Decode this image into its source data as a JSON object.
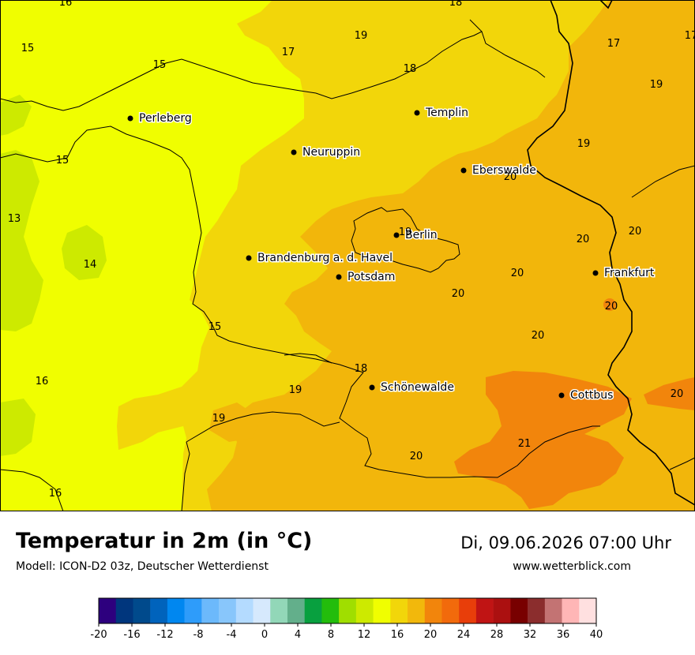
{
  "map": {
    "colors": {
      "c14": "#cdea00",
      "c16": "#f0fe00",
      "c18": "#f2d60a",
      "c19": "#f2b80c",
      "c20": "#f2b60b",
      "c21": "#f2850c",
      "border": "#000000"
    },
    "cities": [
      {
        "name": "Perleberg"
      },
      {
        "name": "Neuruppin"
      },
      {
        "name": "Templin"
      },
      {
        "name": "Eberswalde"
      },
      {
        "name": "Berlin"
      },
      {
        "name": "Brandenburg a. d. Havel"
      },
      {
        "name": "Potsdam"
      },
      {
        "name": "Frankfurt"
      },
      {
        "name": "Schönewalde"
      },
      {
        "name": "Cottbus"
      }
    ],
    "values": [
      "16",
      "18",
      "15",
      "17",
      "19",
      "17",
      "18",
      "15",
      "17",
      "19",
      "19",
      "15",
      "13",
      "14",
      "15",
      "19",
      "20",
      "20",
      "20",
      "20",
      "20",
      "20",
      "20",
      "15",
      "18",
      "19",
      "16",
      "19",
      "20",
      "21",
      "20",
      "16"
    ]
  },
  "footer": {
    "title": "Temperatur in 2m (in °C)",
    "subtitle": "Modell: ICON-D2 03z, Deutscher Wetterdienst",
    "datetime": "Di, 09.06.2026 07:00 Uhr",
    "website": "www.wetterblick.com"
  },
  "scale": {
    "colors": [
      "#2d007e",
      "#00367d",
      "#004a8c",
      "#0063bc",
      "#0087f0",
      "#2e9cfa",
      "#6cb9fb",
      "#88c6fb",
      "#b4dbff",
      "#d6e9fd",
      "#92d7b8",
      "#63af8b",
      "#08a03f",
      "#23bd0c",
      "#a0de00",
      "#cdea00",
      "#f0fe00",
      "#f2d60a",
      "#f2b80c",
      "#f2850c",
      "#f26a0c",
      "#e83e0a",
      "#c01414",
      "#ab1010",
      "#780000",
      "#8b2d2d",
      "#c37373",
      "#ffb6b6",
      "#ffe0e0"
    ],
    "labels": [
      "-20",
      "-16",
      "-12",
      "-8",
      "-4",
      "0",
      "4",
      "8",
      "12",
      "16",
      "20",
      "24",
      "28",
      "32",
      "36",
      "40"
    ]
  }
}
